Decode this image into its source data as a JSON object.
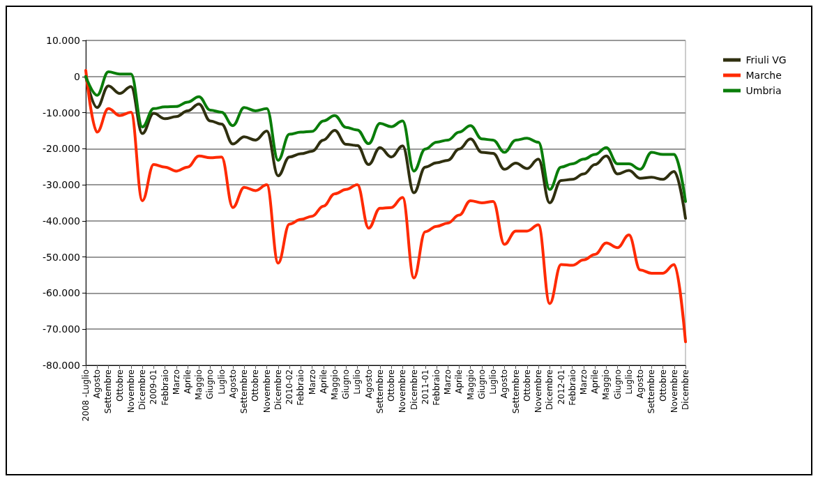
{
  "chart_data": {
    "type": "line",
    "categories": [
      "2008 -Luglio",
      "Agosto",
      "Settembre",
      "Ottobre",
      "Novembre",
      "Dicembre",
      "2009-01",
      "Febbraio",
      "Marzo",
      "Aprile",
      "Maggio",
      "Giugno",
      "Luglio",
      "Agosto",
      "Settembre",
      "Ottobre",
      "Novembre",
      "Dicembre",
      "2010-02",
      "Febbraio",
      "Marzo",
      "Aprile",
      "Maggio",
      "Giugno",
      "Luglio",
      "Agosto",
      "Settembre",
      "Ottobre",
      "Novembre",
      "Dicembre",
      "2011-01",
      "Febbraio",
      "Marzo",
      "Aprile",
      "Maggio",
      "Giugno",
      "Luglio",
      "Agosto",
      "Settembre",
      "Ottobre",
      "Novembre",
      "Dicembre",
      "2012-01",
      "Febbraio",
      "Marzo",
      "Aprile",
      "Maggio",
      "Giugno",
      "Luglio",
      "Agosto",
      "Settembre",
      "Ottobre",
      "Novembre",
      "Dicembre"
    ],
    "series": [
      {
        "name": "Friuli VG",
        "color": "#2f2f0f",
        "values": [
          0,
          -8600,
          -2600,
          -4700,
          -2800,
          -15800,
          -10200,
          -11700,
          -11100,
          -9500,
          -7600,
          -12300,
          -13200,
          -18700,
          -16700,
          -17600,
          -15100,
          -27500,
          -22300,
          -21400,
          -20700,
          -17600,
          -14900,
          -18800,
          -19100,
          -24400,
          -19700,
          -22300,
          -19200,
          -32200,
          -25100,
          -23900,
          -23200,
          -20100,
          -17300,
          -21000,
          -21300,
          -25700,
          -24000,
          -25500,
          -22900,
          -35000,
          -28800,
          -28500,
          -27000,
          -24400,
          -22000,
          -27000,
          -26000,
          -28200,
          -27900,
          -28500,
          -26300,
          -39300
        ]
      },
      {
        "name": "Marche",
        "color": "#ff2a00",
        "values": [
          1700,
          -15400,
          -8900,
          -10800,
          -9900,
          -34400,
          -24400,
          -25100,
          -26200,
          -25100,
          -22000,
          -22500,
          -22300,
          -36300,
          -30700,
          -31600,
          -30000,
          -51700,
          -40900,
          -39600,
          -38700,
          -35900,
          -32500,
          -31300,
          -30000,
          -42000,
          -36500,
          -36300,
          -33500,
          -55800,
          -43000,
          -41500,
          -40600,
          -38400,
          -34400,
          -35000,
          -34600,
          -46500,
          -42800,
          -42800,
          -41100,
          -62900,
          -52100,
          -52300,
          -50800,
          -49300,
          -46100,
          -47400,
          -43900,
          -53600,
          -54500,
          -54500,
          -52100,
          -73500
        ]
      },
      {
        "name": "Umbria",
        "color": "#0a7d0a",
        "values": [
          0,
          -5200,
          1300,
          700,
          700,
          -14000,
          -8900,
          -8400,
          -8300,
          -7100,
          -5600,
          -9300,
          -9900,
          -13600,
          -8600,
          -9500,
          -8900,
          -23200,
          -16000,
          -15400,
          -15200,
          -12300,
          -10800,
          -14100,
          -14800,
          -18600,
          -13000,
          -13900,
          -12300,
          -26200,
          -20100,
          -18200,
          -17600,
          -15400,
          -13600,
          -17300,
          -17600,
          -21000,
          -17600,
          -17100,
          -18200,
          -31300,
          -25100,
          -24200,
          -22900,
          -21600,
          -19700,
          -24200,
          -24200,
          -25700,
          -21000,
          -21600,
          -21600,
          -34600
        ]
      }
    ],
    "ylim": [
      -80000,
      10000
    ],
    "yticks": [
      {
        "value": -80000,
        "label": "-80.000"
      },
      {
        "value": -70000,
        "label": "-70.000"
      },
      {
        "value": -60000,
        "label": "-60.000"
      },
      {
        "value": -50000,
        "label": "-50.000"
      },
      {
        "value": -40000,
        "label": "-40.000"
      },
      {
        "value": -30000,
        "label": "-30.000"
      },
      {
        "value": -20000,
        "label": "-20.000"
      },
      {
        "value": -10000,
        "label": "-10.000"
      },
      0,
      {
        "value": 10000,
        "label": "10.000"
      }
    ],
    "grid": "y",
    "legend": "top right",
    "marker": "none",
    "line_style": "solid"
  }
}
